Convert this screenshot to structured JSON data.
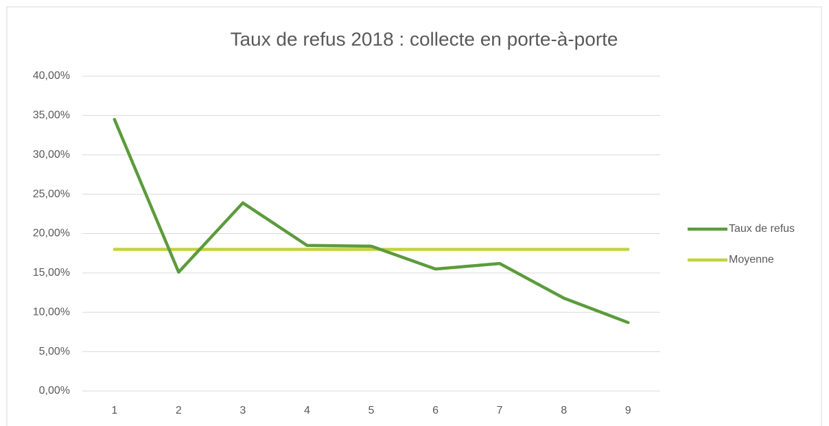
{
  "chart_data": {
    "type": "line",
    "title": "Taux de refus 2018 : collecte en porte-à-porte",
    "categories": [
      "1",
      "2",
      "3",
      "4",
      "5",
      "6",
      "7",
      "8",
      "9"
    ],
    "series": [
      {
        "name": "Taux de refus",
        "color": "#5b9b3c",
        "values": [
          34.5,
          15.1,
          23.9,
          18.5,
          18.4,
          15.5,
          16.2,
          11.8,
          8.7
        ]
      },
      {
        "name": "Moyenne",
        "color": "#c3d33c",
        "values": [
          18,
          18,
          18,
          18,
          18,
          18,
          18,
          18,
          18
        ]
      }
    ],
    "ylim": [
      0,
      40
    ],
    "yticks": [
      {
        "value": 0,
        "label": "0,00%"
      },
      {
        "value": 5,
        "label": "5,00%"
      },
      {
        "value": 10,
        "label": "10,00%"
      },
      {
        "value": 15,
        "label": "15,00%"
      },
      {
        "value": 20,
        "label": "20,00%"
      },
      {
        "value": 25,
        "label": "25,00%"
      },
      {
        "value": 30,
        "label": "30,00%"
      },
      {
        "value": 35,
        "label": "35,00%"
      },
      {
        "value": 40,
        "label": "40,00%"
      }
    ],
    "grid": true,
    "legend": "right"
  }
}
